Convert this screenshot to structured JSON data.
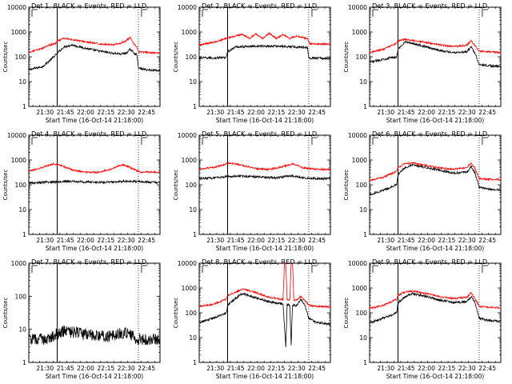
{
  "chart_data": [
    {
      "type": "line",
      "title": "Det 1, BLACK = Events, RED = LLD",
      "xlabel": "Start Time (16-Oct-14 21:18:00)",
      "ylabel": "Counts/sec",
      "yscale": "log",
      "ylim": [
        1,
        10000
      ],
      "xlim": [
        "21:18",
        "22:55"
      ],
      "x_tick_labels": [
        "21:30",
        "21:45",
        "22:00",
        "22:15",
        "22:30",
        "22:45"
      ],
      "y_tick_labels": [
        "1",
        "10",
        "100",
        "1000",
        "10000"
      ],
      "vlines": {
        "solid": [
          "21:39"
        ],
        "dotted": [
          "22:39"
        ]
      },
      "series": [
        {
          "color": "#000000",
          "x": [
            "21:18",
            "21:28",
            "21:32",
            "21:38",
            "21:39",
            "21:44",
            "21:50",
            "22:00",
            "22:10",
            "22:20",
            "22:26",
            "22:30",
            "22:33",
            "22:36",
            "22:38",
            "22:39",
            "22:45",
            "22:55"
          ],
          "values": [
            30,
            40,
            60,
            120,
            140,
            250,
            300,
            220,
            170,
            140,
            130,
            140,
            200,
            140,
            120,
            35,
            30,
            28
          ]
        },
        {
          "color": "#ff0000",
          "x": [
            "21:18",
            "21:28",
            "21:32",
            "21:38",
            "21:39",
            "21:44",
            "21:50",
            "22:00",
            "22:10",
            "22:20",
            "22:26",
            "22:30",
            "22:33",
            "22:36",
            "22:38",
            "22:39",
            "22:45",
            "22:55"
          ],
          "values": [
            150,
            220,
            280,
            350,
            420,
            550,
            500,
            400,
            330,
            310,
            350,
            450,
            600,
            300,
            250,
            160,
            150,
            140
          ]
        }
      ]
    },
    {
      "type": "line",
      "title": "Det 2, BLACK = Events, RED = LLD",
      "xlabel": "Start Time (16-Oct-14 21:18:00)",
      "ylabel": "Counts/sec",
      "yscale": "log",
      "ylim": [
        1,
        10000
      ],
      "xlim": [
        "21:18",
        "22:55"
      ],
      "x_tick_labels": [
        "21:30",
        "21:45",
        "22:00",
        "22:15",
        "22:30",
        "22:45"
      ],
      "y_tick_labels": [
        "1",
        "10",
        "100",
        "1000",
        "10000"
      ],
      "vlines": {
        "solid": [
          "21:39"
        ],
        "dotted": [
          "22:39"
        ]
      },
      "series": [
        {
          "color": "#000000",
          "x": [
            "21:18",
            "21:30",
            "21:38",
            "21:39",
            "21:45",
            "22:00",
            "22:15",
            "22:30",
            "22:38",
            "22:39",
            "22:55"
          ],
          "values": [
            90,
            90,
            95,
            160,
            250,
            270,
            270,
            250,
            240,
            90,
            85
          ]
        },
        {
          "color": "#ff0000",
          "x": [
            "21:18",
            "21:30",
            "21:40",
            "21:50",
            "21:55",
            "22:00",
            "22:05",
            "22:10",
            "22:15",
            "22:20",
            "22:25",
            "22:30",
            "22:38",
            "22:40",
            "22:55"
          ],
          "values": [
            300,
            400,
            600,
            800,
            550,
            850,
            550,
            900,
            550,
            800,
            550,
            700,
            550,
            330,
            320
          ]
        }
      ]
    },
    {
      "type": "line",
      "title": "Det 3, BLACK = Events, RED = LLD",
      "xlabel": "Start Time (16-Oct-14 21:18:00)",
      "ylabel": "Counts/sec",
      "yscale": "log",
      "ylim": [
        1,
        10000
      ],
      "xlim": [
        "21:18",
        "22:55"
      ],
      "x_tick_labels": [
        "21:30",
        "21:45",
        "22:00",
        "22:15",
        "22:30",
        "22:45"
      ],
      "y_tick_labels": [
        "1",
        "10",
        "100",
        "1000",
        "10000"
      ],
      "vlines": {
        "solid": [
          "21:39"
        ],
        "dotted": [
          "22:39"
        ]
      },
      "series": [
        {
          "color": "#000000",
          "x": [
            "21:18",
            "21:28",
            "21:38",
            "21:39",
            "21:44",
            "21:50",
            "22:00",
            "22:10",
            "22:20",
            "22:30",
            "22:33",
            "22:36",
            "22:39",
            "22:45",
            "22:55"
          ],
          "values": [
            60,
            80,
            100,
            200,
            400,
            350,
            250,
            180,
            150,
            160,
            250,
            140,
            50,
            45,
            40
          ]
        },
        {
          "color": "#ff0000",
          "x": [
            "21:18",
            "21:28",
            "21:38",
            "21:39",
            "21:44",
            "21:50",
            "22:00",
            "22:10",
            "22:20",
            "22:30",
            "22:33",
            "22:36",
            "22:39",
            "22:45",
            "22:55"
          ],
          "values": [
            150,
            200,
            350,
            450,
            500,
            460,
            380,
            300,
            260,
            290,
            450,
            280,
            170,
            160,
            150
          ]
        }
      ]
    },
    {
      "type": "line",
      "title": "Det 4, BLACK = Events, RED = LLD",
      "xlabel": "Start Time (16-Oct-14 21:18:00)",
      "ylabel": "Counts/sec",
      "yscale": "log",
      "ylim": [
        1,
        10000
      ],
      "xlim": [
        "21:18",
        "22:55"
      ],
      "x_tick_labels": [
        "21:30",
        "21:45",
        "22:00",
        "22:15",
        "22:30",
        "22:45"
      ],
      "y_tick_labels": [
        "1",
        "10",
        "100",
        "1000",
        "10000"
      ],
      "vlines": {
        "solid": [
          "21:39"
        ],
        "dotted": [
          "22:39"
        ]
      },
      "series": [
        {
          "color": "#000000",
          "x": [
            "21:18",
            "21:30",
            "21:45",
            "22:00",
            "22:15",
            "22:30",
            "22:45",
            "22:55"
          ],
          "values": [
            120,
            125,
            140,
            130,
            125,
            140,
            130,
            125
          ]
        },
        {
          "color": "#ff0000",
          "x": [
            "21:18",
            "21:28",
            "21:36",
            "21:42",
            "21:50",
            "22:00",
            "22:10",
            "22:20",
            "22:27",
            "22:33",
            "22:40",
            "22:55"
          ],
          "values": [
            350,
            500,
            700,
            600,
            400,
            320,
            320,
            450,
            650,
            500,
            330,
            320
          ]
        }
      ]
    },
    {
      "type": "line",
      "title": "Det 5, BLACK = Events, RED = LLD",
      "xlabel": "Start Time (16-Oct-14 21:18:00)",
      "ylabel": "Counts/sec",
      "yscale": "log",
      "ylim": [
        1,
        10000
      ],
      "xlim": [
        "21:18",
        "22:55"
      ],
      "x_tick_labels": [
        "21:30",
        "21:45",
        "22:00",
        "22:15",
        "22:30",
        "22:45"
      ],
      "y_tick_labels": [
        "1",
        "10",
        "100",
        "1000",
        "10000"
      ],
      "vlines": {
        "solid": [
          "21:39"
        ],
        "dotted": [
          "22:39"
        ]
      },
      "series": [
        {
          "color": "#000000",
          "x": [
            "21:18",
            "21:30",
            "21:45",
            "22:00",
            "22:15",
            "22:25",
            "22:35",
            "22:45",
            "22:55"
          ],
          "values": [
            180,
            190,
            230,
            210,
            190,
            230,
            190,
            180,
            175
          ]
        },
        {
          "color": "#ff0000",
          "x": [
            "21:18",
            "21:30",
            "21:40",
            "21:48",
            "22:00",
            "22:10",
            "22:20",
            "22:28",
            "22:35",
            "22:45",
            "22:55"
          ],
          "values": [
            420,
            520,
            750,
            650,
            450,
            420,
            550,
            700,
            480,
            420,
            410
          ]
        }
      ]
    },
    {
      "type": "line",
      "title": "Det 6, BLACK = Events, RED = LLD",
      "xlabel": "Start Time (16-Oct-14 21:18:00)",
      "ylabel": "Counts/sec",
      "yscale": "log",
      "ylim": [
        1,
        10000
      ],
      "xlim": [
        "21:18",
        "22:55"
      ],
      "x_tick_labels": [
        "21:30",
        "21:45",
        "22:00",
        "22:15",
        "22:30",
        "22:45"
      ],
      "y_tick_labels": [
        "1",
        "10",
        "100",
        "1000",
        "10000"
      ],
      "vlines": {
        "solid": [
          "21:39"
        ],
        "dotted": [
          "22:39"
        ]
      },
      "series": [
        {
          "color": "#000000",
          "x": [
            "21:18",
            "21:28",
            "21:38",
            "21:39",
            "21:44",
            "21:50",
            "22:00",
            "22:10",
            "22:20",
            "22:30",
            "22:33",
            "22:36",
            "22:39",
            "22:45",
            "22:55"
          ],
          "values": [
            40,
            60,
            100,
            250,
            500,
            650,
            500,
            380,
            300,
            320,
            550,
            300,
            80,
            70,
            60
          ]
        },
        {
          "color": "#ff0000",
          "x": [
            "21:18",
            "21:28",
            "21:38",
            "21:39",
            "21:44",
            "21:50",
            "22:00",
            "22:10",
            "22:20",
            "22:30",
            "22:33",
            "22:36",
            "22:39",
            "22:45",
            "22:55"
          ],
          "values": [
            150,
            200,
            350,
            500,
            700,
            750,
            600,
            480,
            420,
            500,
            750,
            450,
            180,
            170,
            160
          ]
        }
      ]
    },
    {
      "type": "line",
      "title": "Det 7, BLACK = Events, RED = LLD",
      "xlabel": "Start Time (16-Oct-14 21:18:00)",
      "ylabel": "Counts/sec",
      "yscale": "log",
      "ylim": [
        1,
        1000
      ],
      "xlim": [
        "21:18",
        "22:55"
      ],
      "x_tick_labels": [
        "21:30",
        "21:45",
        "22:00",
        "22:15",
        "22:30",
        "22:45"
      ],
      "y_tick_labels": [
        "1",
        "10",
        "100",
        "1000"
      ],
      "vlines": {
        "solid": [
          "21:39"
        ],
        "dotted": [
          "22:39"
        ]
      },
      "series": [
        {
          "color": "#000000",
          "x": [
            "21:18",
            "21:30",
            "21:38",
            "21:45",
            "22:00",
            "22:15",
            "22:30",
            "22:39",
            "22:55"
          ],
          "values": [
            5,
            5,
            7,
            9,
            7,
            6,
            8,
            5,
            5
          ]
        }
      ]
    },
    {
      "type": "line",
      "title": "Det 8, BLACK = Events, RED = LLD",
      "xlabel": "Start Time (16-Oct-14 21:18:00)",
      "ylabel": "Counts/sec",
      "yscale": "log",
      "ylim": [
        1,
        10000
      ],
      "xlim": [
        "21:18",
        "22:55"
      ],
      "x_tick_labels": [
        "21:30",
        "21:45",
        "22:00",
        "22:15",
        "22:30",
        "22:45"
      ],
      "y_tick_labels": [
        "1",
        "10",
        "100",
        "1000",
        "10000"
      ],
      "vlines": {
        "solid": [
          "21:39"
        ],
        "dotted": [
          "22:39"
        ]
      },
      "series": [
        {
          "color": "#000000",
          "x": [
            "21:18",
            "21:28",
            "21:38",
            "21:39",
            "21:44",
            "21:50",
            "22:00",
            "22:10",
            "22:20",
            "22:22",
            "22:23",
            "22:25",
            "22:26",
            "22:27",
            "22:30",
            "22:33",
            "22:36",
            "22:39",
            "22:45",
            "22:55"
          ],
          "values": [
            40,
            60,
            100,
            200,
            350,
            600,
            400,
            280,
            220,
            4,
            220,
            200,
            5,
            200,
            200,
            350,
            220,
            60,
            40,
            35
          ]
        },
        {
          "color": "#ff0000",
          "x": [
            "21:18",
            "21:28",
            "21:38",
            "21:39",
            "21:44",
            "21:50",
            "22:00",
            "22:10",
            "22:20",
            "22:21",
            "22:22",
            "22:23",
            "22:25",
            "22:26",
            "22:27",
            "22:28",
            "22:30",
            "22:33",
            "22:36",
            "22:39",
            "22:45",
            "22:55"
          ],
          "values": [
            180,
            220,
            350,
            500,
            650,
            900,
            650,
            420,
            340,
            10000,
            10000,
            340,
            330,
            10000,
            10000,
            330,
            320,
            450,
            320,
            200,
            180,
            170
          ]
        }
      ]
    },
    {
      "type": "line",
      "title": "Det 9, BLACK = Events, RED = LLD",
      "xlabel": "Start Time (16-Oct-14 21:18:00)",
      "ylabel": "Counts/sec",
      "yscale": "log",
      "ylim": [
        1,
        10000
      ],
      "xlim": [
        "21:18",
        "22:55"
      ],
      "x_tick_labels": [
        "21:30",
        "21:45",
        "22:00",
        "22:15",
        "22:30",
        "22:45"
      ],
      "y_tick_labels": [
        "1",
        "10",
        "100",
        "1000",
        "10000"
      ],
      "vlines": {
        "solid": [
          "21:39"
        ],
        "dotted": [
          "22:39"
        ]
      },
      "series": [
        {
          "color": "#000000",
          "x": [
            "21:18",
            "21:28",
            "21:38",
            "21:39",
            "21:44",
            "21:50",
            "22:00",
            "22:10",
            "22:20",
            "22:30",
            "22:33",
            "22:36",
            "22:39",
            "22:45",
            "22:55"
          ],
          "values": [
            40,
            60,
            100,
            250,
            450,
            600,
            450,
            320,
            260,
            280,
            450,
            260,
            60,
            50,
            45
          ]
        },
        {
          "color": "#ff0000",
          "x": [
            "21:18",
            "21:28",
            "21:38",
            "21:39",
            "21:44",
            "21:50",
            "22:00",
            "22:10",
            "22:20",
            "22:30",
            "22:33",
            "22:36",
            "22:39",
            "22:45",
            "22:55"
          ],
          "values": [
            150,
            200,
            350,
            500,
            700,
            750,
            600,
            450,
            380,
            420,
            650,
            380,
            180,
            170,
            160
          ]
        }
      ]
    }
  ]
}
